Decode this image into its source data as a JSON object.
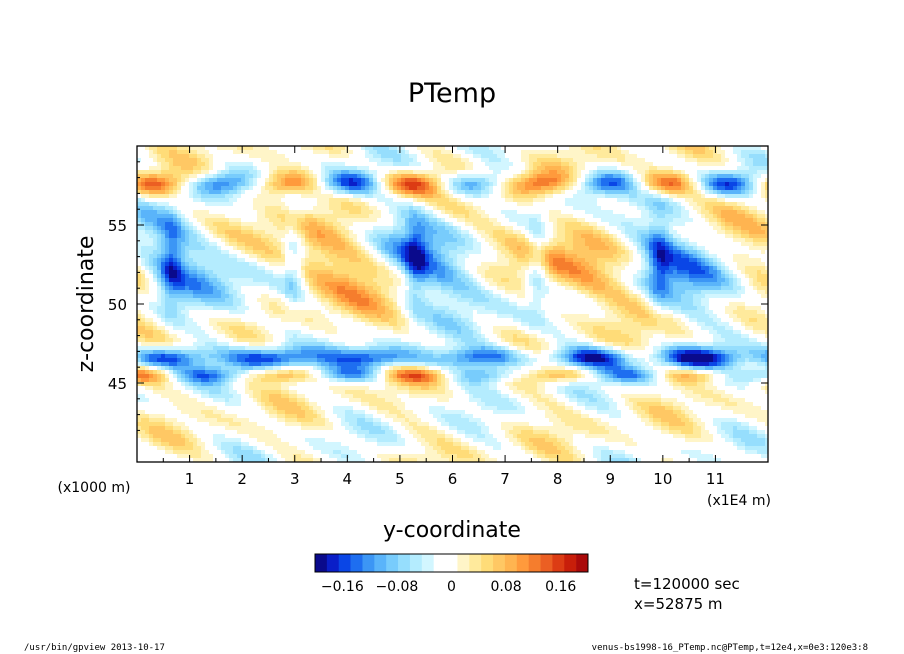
{
  "chart_data": {
    "type": "heatmap",
    "title": "PTemp",
    "xlabel": "y-coordinate",
    "ylabel": "z-coordinate",
    "x_unit_note": "(x1E4 m)",
    "y_unit_note": "(x1000 m)",
    "x_ticks": [
      {
        "value": 1,
        "label": "1"
      },
      {
        "value": 2,
        "label": "2"
      },
      {
        "value": 3,
        "label": "3"
      },
      {
        "value": 4,
        "label": "4"
      },
      {
        "value": 5,
        "label": "5"
      },
      {
        "value": 6,
        "label": "6"
      },
      {
        "value": 7,
        "label": "7"
      },
      {
        "value": 8,
        "label": "8"
      },
      {
        "value": 9,
        "label": "9"
      },
      {
        "value": 10,
        "label": "10"
      },
      {
        "value": 11,
        "label": "11"
      }
    ],
    "y_ticks": [
      {
        "value": 45,
        "label": "45"
      },
      {
        "value": 50,
        "label": "50"
      },
      {
        "value": 55,
        "label": "55"
      }
    ],
    "xlim": [
      0,
      12
    ],
    "ylim": [
      40,
      60
    ],
    "colorbar": {
      "vmin": -0.2,
      "vmax": 0.2,
      "ticks": [
        {
          "value": -0.16,
          "label": "−0.16"
        },
        {
          "value": -0.08,
          "label": "−0.08"
        },
        {
          "value": 0,
          "label": "0"
        },
        {
          "value": 0.08,
          "label": "0.08"
        },
        {
          "value": 0.16,
          "label": "0.16"
        }
      ],
      "colors": [
        "#0a0a8c",
        "#0a1ec8",
        "#0a46e6",
        "#1e6ef0",
        "#3c96f5",
        "#5ab4fa",
        "#78ccfc",
        "#96defd",
        "#b4ecfe",
        "#d2f6ff",
        "#ffffff",
        "#ffffff",
        "#fff5c8",
        "#ffea9c",
        "#ffdc78",
        "#ffc864",
        "#ffb450",
        "#ff9a3c",
        "#f57d2d",
        "#eb5f23",
        "#dc3c14",
        "#c81e0a",
        "#aa0a0a"
      ]
    },
    "annotations": [
      "t=120000 sec",
      "x=52875 m"
    ]
  },
  "footer": {
    "left": "/usr/bin/gpview   2013-10-17",
    "right": "venus-bs1998-16_PTemp.nc@PTemp,t=12e4,x=0e3:120e3:8"
  }
}
